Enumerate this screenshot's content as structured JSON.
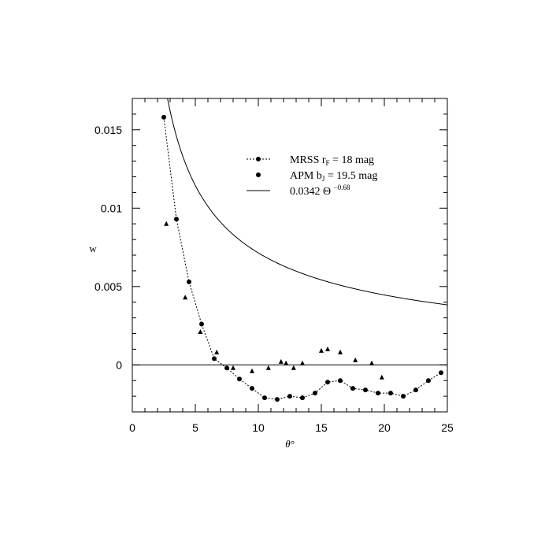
{
  "chart_data": {
    "type": "scatter",
    "title": "",
    "xlabel": "θ°",
    "ylabel": "w",
    "xlim": [
      0,
      25
    ],
    "ylim": [
      -0.003,
      0.017
    ],
    "grid": false,
    "legend_position": "top-right",
    "x_ticks": [
      0,
      5,
      10,
      15,
      20,
      25
    ],
    "x_tick_labels": [
      "0",
      "5",
      "10",
      "15",
      "20",
      "25"
    ],
    "y_ticks": [
      0,
      0.005,
      0.01,
      0.015
    ],
    "y_tick_labels": [
      "0",
      "0.005",
      "0.01",
      "0.015"
    ],
    "reference_line_y": 0,
    "legend": [
      {
        "label_main": "MRSS r",
        "label_sub": "F",
        "label_rest": " = 18 mag",
        "marker": "circle-dotted-line"
      },
      {
        "label_main": "APM b",
        "label_sub": "J",
        "label_rest": " = 19.5 mag",
        "marker": "circle"
      },
      {
        "label_main": "0.0342 Θ ",
        "label_sup": "−0.68",
        "label_rest": "",
        "marker": "solid-line"
      }
    ],
    "series": [
      {
        "name": "MRSS r_F = 18 mag",
        "marker": "circle",
        "line": "dotted",
        "x": [
          2.5,
          3.5,
          4.5,
          5.5,
          6.5,
          7.5,
          8.5,
          9.5,
          10.5,
          11.5,
          12.5,
          13.5,
          14.5,
          15.5,
          16.5,
          17.5,
          18.5,
          19.5,
          20.5,
          21.5,
          22.5,
          23.5,
          24.5
        ],
        "y": [
          0.0158,
          0.0093,
          0.0053,
          0.0026,
          0.0004,
          -0.0002,
          -0.0009,
          -0.0015,
          -0.0021,
          -0.0022,
          -0.002,
          -0.0021,
          -0.0018,
          -0.0011,
          -0.001,
          -0.0015,
          -0.0016,
          -0.0018,
          -0.0018,
          -0.002,
          -0.0016,
          -0.001,
          -0.0005
        ]
      },
      {
        "name": "APM b_J = 19.5 mag",
        "marker": "triangle",
        "line": "none",
        "x": [
          2.7,
          4.2,
          5.4,
          6.7,
          8.0,
          9.5,
          10.8,
          11.8,
          12.2,
          12.8,
          13.5,
          15.0,
          15.5,
          16.5,
          17.7,
          19.0,
          19.8
        ],
        "y": [
          0.009,
          0.0043,
          0.0021,
          0.0008,
          -0.0002,
          -0.0004,
          -0.0002,
          0.0002,
          0.0001,
          -0.0002,
          0.0001,
          0.0009,
          0.001,
          0.0008,
          0.0003,
          0.0001,
          -0.0008
        ]
      },
      {
        "name": "0.0342 Θ^-0.68",
        "marker": "none",
        "line": "solid",
        "function": "power",
        "coefficient": 0.0342,
        "exponent": -0.68
      }
    ]
  }
}
